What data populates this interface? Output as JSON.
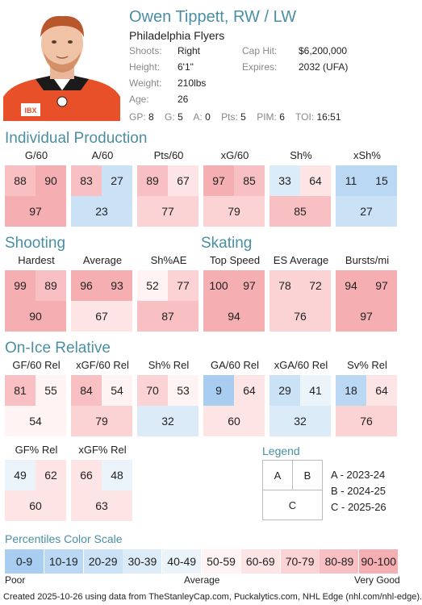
{
  "header": {
    "name": "Owen Tippett, RW / LW",
    "team": "Philadelphia Flyers",
    "info": [
      {
        "label": "Shoots:",
        "value": "Right"
      },
      {
        "label": "Height:",
        "value": "6'1\""
      },
      {
        "label": "Weight:",
        "value": "210lbs"
      },
      {
        "label": "Age:",
        "value": "26"
      }
    ],
    "contract": [
      {
        "label": "Cap Hit:",
        "value": "$6,200,000"
      },
      {
        "label": "Expires:",
        "value": "2032 (UFA)"
      }
    ],
    "season_line": [
      {
        "label": "GP:",
        "value": "8"
      },
      {
        "label": "G:",
        "value": "5"
      },
      {
        "label": "A:",
        "value": "0"
      },
      {
        "label": "Pts:",
        "value": "5"
      },
      {
        "label": "PIM:",
        "value": "6"
      },
      {
        "label": "TOI:",
        "value": "16:51"
      }
    ],
    "jersey_brand": "IBX"
  },
  "sections": {
    "individual": "Individual Production",
    "shooting": "Shooting",
    "skating": "Skating",
    "onice": "On-Ice Relative"
  },
  "stats": [
    {
      "label": "G/60",
      "a": 88,
      "b": 90,
      "c": 97
    },
    {
      "label": "A/60",
      "a": 83,
      "b": 27,
      "c": 23
    },
    {
      "label": "Pts/60",
      "a": 89,
      "b": 67,
      "c": 77
    },
    {
      "label": "xG/60",
      "a": 97,
      "b": 85,
      "c": 79
    },
    {
      "label": "Sh%",
      "a": 33,
      "b": 64,
      "c": 85
    },
    {
      "label": "xSh%",
      "a": 11,
      "b": 15,
      "c": 27
    },
    {
      "label": "Hardest",
      "a": 99,
      "b": 89,
      "c": 90
    },
    {
      "label": "Average",
      "a": 96,
      "b": 93,
      "c": 67
    },
    {
      "label": "Sh%AE",
      "a": 52,
      "b": 77,
      "c": 87
    },
    {
      "label": "Top Speed",
      "a": 100,
      "b": 97,
      "c": 94
    },
    {
      "label": "ES Average",
      "a": 78,
      "b": 72,
      "c": 76
    },
    {
      "label": "Bursts/mi",
      "a": 94,
      "b": 97,
      "c": 97
    },
    {
      "label": "GF/60 Rel",
      "a": 81,
      "b": 55,
      "c": 54
    },
    {
      "label": "xGF/60 Rel",
      "a": 84,
      "b": 54,
      "c": 79
    },
    {
      "label": "Sh% Rel",
      "a": 70,
      "b": 53,
      "c": 32
    },
    {
      "label": "GA/60 Rel",
      "a": 9,
      "b": 64,
      "c": 60
    },
    {
      "label": "xGA/60 Rel",
      "a": 29,
      "b": 41,
      "c": 32
    },
    {
      "label": "Sv% Rel",
      "a": 18,
      "b": 64,
      "c": 76
    },
    {
      "label": "GF% Rel",
      "a": 49,
      "b": 62,
      "c": 60
    },
    {
      "label": "xGF% Rel",
      "a": 66,
      "b": 48,
      "c": 63
    }
  ],
  "legend": {
    "title": "Legend",
    "cells": [
      "A",
      "B",
      "C"
    ],
    "items": [
      "A - 2023-24",
      "B - 2024-25",
      "C - 2025-26"
    ]
  },
  "scale": {
    "title": "Percentiles Color Scale",
    "bins": [
      "0-9",
      "10-19",
      "20-29",
      "30-39",
      "40-49",
      "50-59",
      "60-69",
      "70-79",
      "80-89",
      "90-100"
    ],
    "colors": [
      "#a8cdf0",
      "#bad8f4",
      "#cbe2f6",
      "#dcebf8",
      "#ebf3fb",
      "#fff3f3",
      "#fde4e5",
      "#fbd3d5",
      "#f8c0c3",
      "#f5aeb2"
    ],
    "poor": "Poor",
    "average": "Average",
    "good": "Very Good"
  },
  "footer": "Created 2025-10-26 using data from TheStanleyCap.com, Puckalytics.com, NHL Edge (nhl.com/nhl-edge)."
}
